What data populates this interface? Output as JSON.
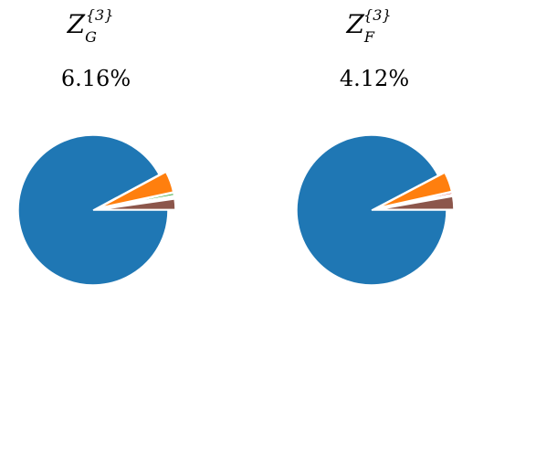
{
  "chart_data": [
    {
      "type": "pie",
      "title_base": "Z",
      "title_subscript": "G",
      "title_superscript": "{3}",
      "percentage_label": "6.16%",
      "slices": [
        {
          "value": 93.84,
          "color": "#1f77b4",
          "explode": false
        },
        {
          "value": 4.6,
          "color": "#ff7f0e",
          "explode": true
        },
        {
          "value": 0.5,
          "color": "#2ca02c",
          "explode": true
        },
        {
          "value": 0.3,
          "color": "#d62728",
          "explode": true
        },
        {
          "value": 0.3,
          "color": "#e377c2",
          "explode": true
        },
        {
          "value": 2.3,
          "color": "#8c564b",
          "explode": true
        }
      ]
    },
    {
      "type": "pie",
      "title_base": "Z",
      "title_subscript": "F",
      "title_superscript": "{3}",
      "percentage_label": "4.12%",
      "slices": [
        {
          "value": 95.88,
          "color": "#1f77b4",
          "explode": false
        },
        {
          "value": 4.4,
          "color": "#ff7f0e",
          "explode": true
        },
        {
          "value": 0.4,
          "color": "#d62728",
          "explode": true
        },
        {
          "value": 0.3,
          "color": "#e377c2",
          "explode": true
        },
        {
          "value": 2.9,
          "color": "#8c564b",
          "explode": true
        }
      ]
    }
  ]
}
